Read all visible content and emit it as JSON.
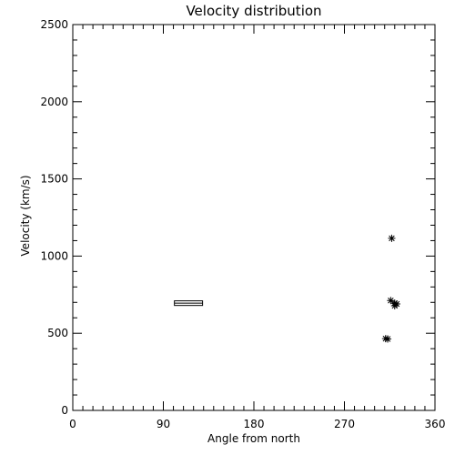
{
  "chart_data": {
    "type": "scatter",
    "title": "Velocity distribution",
    "xlabel": "Angle from north",
    "ylabel": "Velocity (km/s)",
    "xlim": [
      0,
      360
    ],
    "ylim": [
      0,
      2500
    ],
    "xticks": [
      0,
      90,
      180,
      270,
      360
    ],
    "yticks": [
      0,
      500,
      1000,
      1500,
      2000,
      2500
    ],
    "x_minor_step": 10,
    "y_minor_step": 100,
    "grid": false,
    "series": [
      {
        "marker": "asterisk",
        "points": [
          {
            "x": 317,
            "y": 1115
          },
          {
            "x": 316,
            "y": 712
          },
          {
            "x": 320,
            "y": 695
          },
          {
            "x": 322,
            "y": 690
          },
          {
            "x": 320,
            "y": 678
          },
          {
            "x": 311,
            "y": 465
          },
          {
            "x": 313,
            "y": 463
          }
        ]
      },
      {
        "marker": "box",
        "boxes": [
          {
            "x0": 101,
            "x1": 129,
            "y0": 680,
            "y1": 710
          }
        ]
      }
    ]
  }
}
